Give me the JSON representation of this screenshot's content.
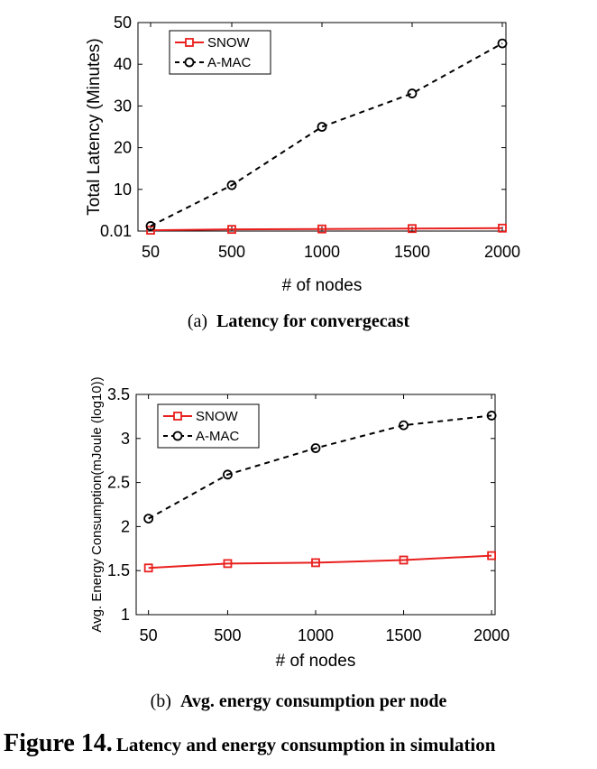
{
  "chart_data": [
    {
      "type": "line",
      "x": [
        50,
        500,
        1000,
        1500,
        2000
      ],
      "x_ticks": [
        "50",
        "500",
        "1000",
        "1500",
        "2000"
      ],
      "y_ticks": [
        "0.01",
        "10",
        "20",
        "30",
        "40",
        "50"
      ],
      "ylim": [
        0,
        50
      ],
      "xlabel": "# of nodes",
      "ylabel": "Total Latency (Minutes)",
      "legend": "top-left",
      "grid": false,
      "series": [
        {
          "name": "SNOW",
          "marker": "square",
          "dash": "solid",
          "color": "#e8201e",
          "values": [
            0.2,
            0.4,
            0.5,
            0.6,
            0.7
          ]
        },
        {
          "name": "A-MAC",
          "marker": "circle",
          "dash": "dashed",
          "color": "#000000",
          "values": [
            1.2,
            11,
            25,
            33,
            45
          ]
        }
      ]
    },
    {
      "type": "line",
      "x": [
        50,
        500,
        1000,
        1500,
        2000
      ],
      "x_ticks": [
        "50",
        "500",
        "1000",
        "1500",
        "2000"
      ],
      "y_ticks": [
        "1",
        "1.5",
        "2",
        "2.5",
        "3",
        "3.5"
      ],
      "ylim": [
        1,
        3.5
      ],
      "xlabel": "# of nodes",
      "ylabel": "Avg. Energy Consumption(mJoule (log10))",
      "legend": "top-left",
      "grid": false,
      "series": [
        {
          "name": "SNOW",
          "marker": "square",
          "dash": "solid",
          "color": "#e8201e",
          "values": [
            1.53,
            1.58,
            1.59,
            1.62,
            1.67
          ]
        },
        {
          "name": "A-MAC",
          "marker": "circle",
          "dash": "dashed",
          "color": "#000000",
          "values": [
            2.09,
            2.59,
            2.89,
            3.15,
            3.26
          ]
        }
      ]
    }
  ],
  "captions": {
    "a_label": "(a)",
    "a_text": "Latency for convergecast",
    "b_label": "(b)",
    "b_text": "Avg. energy consumption per node",
    "figure_label": "Figure 14.",
    "figure_text": "Latency and energy consumption in simulation"
  }
}
